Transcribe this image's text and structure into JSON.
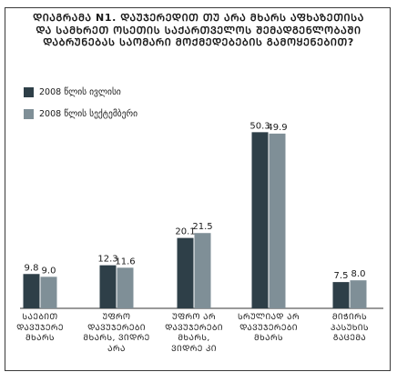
{
  "chart_data": {
    "type": "bar",
    "title_lines": [
      "ᲓᲘᲐᲒᲠᲐᲛᲐ N1. ᲓᲐᲣᲯᲔᲠᲔᲓᲘᲗ ᲗᲣ ᲐᲠᲐ ᲛᲮᲐᲠᲡ ᲐᲤᲮᲐᲖᲔᲗᲘᲡᲐ",
      "ᲓᲐ ᲡᲐᲛᲮᲠᲔᲗ ᲝᲡᲔᲗᲘᲡ ᲡᲐᲥᲐᲠᲗᲕᲔᲚᲝᲡ ᲨᲔᲛᲐᲓᲒᲔᲜᲚᲝᲑᲐᲨᲘ",
      "ᲓᲐᲑᲠᲣᲜᲔᲑᲐᲡ ᲡᲐᲝᲛᲐᲠᲘ ᲛᲝᲥᲛᲔᲓᲔᲑᲔᲑᲘᲡ ᲒᲐᲛᲝᲧᲔᲜᲔᲑᲘᲗ?"
    ],
    "categories": [
      [
        "ᲡᲐᲔᲑᲘᲗ",
        "ᲓᲐᲕᲣᲯᲔᲠᲔ",
        "ᲛᲮᲐᲠᲡ"
      ],
      [
        "ᲣᲤᲠᲝ",
        "ᲓᲐᲕᲣᲯᲔᲠᲔᲑᲘ",
        "ᲛᲮᲐᲠᲡ, ᲕᲘᲓᲠᲔ",
        "ᲐᲠᲐ"
      ],
      [
        "ᲣᲤᲠᲝ ᲐᲠ",
        "ᲓᲐᲕᲣᲯᲔᲠᲔᲑᲘ",
        "ᲛᲮᲐᲠᲡ,",
        "ᲕᲘᲓᲠᲔ ᲙᲘ"
      ],
      [
        "ᲡᲠᲣᲚᲘᲐᲓ ᲐᲠ",
        "ᲓᲐᲕᲣᲯᲔᲠᲔᲑᲘ",
        "ᲛᲮᲐᲠᲡ"
      ],
      [
        "ᲛᲘᲭᲘᲠᲡ",
        "ᲞᲐᲡᲣᲮᲘᲡ",
        "ᲒᲐᲪᲔᲛᲐ"
      ]
    ],
    "series": [
      {
        "name": "2008 წლის ივლისი",
        "color": "#2e3f48",
        "values": [
          9.8,
          12.3,
          20.1,
          50.3,
          7.5
        ]
      },
      {
        "name": "2008 წლის სექტემბერი",
        "color": "#7f8f97",
        "values": [
          9.0,
          11.6,
          21.5,
          49.9,
          8.0
        ]
      }
    ],
    "ylim": [
      0,
      55
    ],
    "grid": false,
    "legend_position": "top-left"
  }
}
